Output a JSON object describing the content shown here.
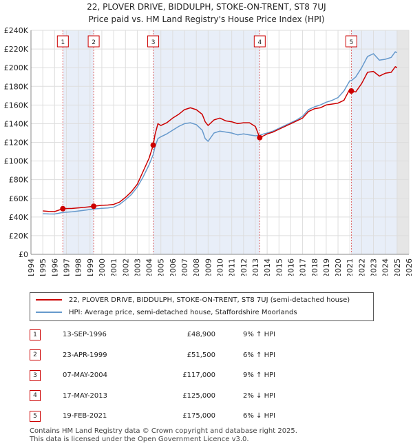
{
  "title_line1": "22, PLOVER DRIVE, BIDDULPH, STOKE-ON-TRENT, ST8 7UJ",
  "title_line2": "Price paid vs. HM Land Registry's House Price Index (HPI)",
  "colors": {
    "price_line": "#cc0000",
    "hpi_line": "#6699cc",
    "sale_band": "#e8eef8",
    "future_band": "#e6e6e6",
    "grid": "#dddddd"
  },
  "chart_data": {
    "type": "line",
    "xlim": [
      1994,
      2026
    ],
    "ylim": [
      0,
      240000
    ],
    "x_ticks": [
      "1994",
      "1995",
      "1996",
      "1997",
      "1998",
      "1999",
      "2000",
      "2001",
      "2002",
      "2003",
      "2004",
      "2005",
      "2006",
      "2007",
      "2008",
      "2009",
      "2010",
      "2011",
      "2012",
      "2013",
      "2014",
      "2015",
      "2016",
      "2017",
      "2018",
      "2019",
      "2020",
      "2021",
      "2022",
      "2023",
      "2024",
      "2025",
      "2026"
    ],
    "y_ticks": [
      {
        "value": 0,
        "label": "£0"
      },
      {
        "value": 20000,
        "label": "£20K"
      },
      {
        "value": 40000,
        "label": "£40K"
      },
      {
        "value": 60000,
        "label": "£60K"
      },
      {
        "value": 80000,
        "label": "£80K"
      },
      {
        "value": 100000,
        "label": "£100K"
      },
      {
        "value": 120000,
        "label": "£120K"
      },
      {
        "value": 140000,
        "label": "£140K"
      },
      {
        "value": 160000,
        "label": "£160K"
      },
      {
        "value": 180000,
        "label": "£180K"
      },
      {
        "value": 200000,
        "label": "£200K"
      },
      {
        "value": 220000,
        "label": "£220K"
      },
      {
        "value": 240000,
        "label": "£240K"
      }
    ],
    "grid": true,
    "future_from": 2025.0,
    "sale_bands": [
      [
        1996.7,
        1999.3
      ],
      [
        2004.35,
        2013.37
      ],
      [
        2021.13,
        2025.0
      ]
    ],
    "series": [
      {
        "name": "22, PLOVER DRIVE, BIDDULPH, STOKE-ON-TRENT, ST8 7UJ (semi-detached house)",
        "color": "#cc0000",
        "points": [
          [
            1995.0,
            46500
          ],
          [
            1995.5,
            46000
          ],
          [
            1996.0,
            45800
          ],
          [
            1996.7,
            48900
          ],
          [
            1997.5,
            49200
          ],
          [
            1998.5,
            50300
          ],
          [
            1999.3,
            51500
          ],
          [
            2000.0,
            52500
          ],
          [
            2000.5,
            52800
          ],
          [
            2001.0,
            53500
          ],
          [
            2001.5,
            56000
          ],
          [
            2002.0,
            61000
          ],
          [
            2002.5,
            67000
          ],
          [
            2003.0,
            75000
          ],
          [
            2003.5,
            89000
          ],
          [
            2004.0,
            103000
          ],
          [
            2004.35,
            117000
          ],
          [
            2004.5,
            128000
          ],
          [
            2004.75,
            140000
          ],
          [
            2005.0,
            138000
          ],
          [
            2005.5,
            141000
          ],
          [
            2006.0,
            146000
          ],
          [
            2006.5,
            150000
          ],
          [
            2007.0,
            155000
          ],
          [
            2007.5,
            157000
          ],
          [
            2008.0,
            155000
          ],
          [
            2008.5,
            150000
          ],
          [
            2008.75,
            142000
          ],
          [
            2009.0,
            138000
          ],
          [
            2009.5,
            144000
          ],
          [
            2010.0,
            146000
          ],
          [
            2010.5,
            143000
          ],
          [
            2011.0,
            142000
          ],
          [
            2011.5,
            140000
          ],
          [
            2012.0,
            141000
          ],
          [
            2012.5,
            141000
          ],
          [
            2013.0,
            137000
          ],
          [
            2013.37,
            125000
          ],
          [
            2013.7,
            127000
          ],
          [
            2014.0,
            129000
          ],
          [
            2014.5,
            131000
          ],
          [
            2015.0,
            134000
          ],
          [
            2015.5,
            137000
          ],
          [
            2016.0,
            140000
          ],
          [
            2016.5,
            143000
          ],
          [
            2017.0,
            146000
          ],
          [
            2017.5,
            153000
          ],
          [
            2018.0,
            156000
          ],
          [
            2018.5,
            157000
          ],
          [
            2019.0,
            160000
          ],
          [
            2019.5,
            161000
          ],
          [
            2020.0,
            162000
          ],
          [
            2020.5,
            165000
          ],
          [
            2021.0,
            177000
          ],
          [
            2021.13,
            175000
          ],
          [
            2021.5,
            174000
          ],
          [
            2022.0,
            183000
          ],
          [
            2022.5,
            195000
          ],
          [
            2023.0,
            196000
          ],
          [
            2023.5,
            191000
          ],
          [
            2024.0,
            194000
          ],
          [
            2024.5,
            195000
          ],
          [
            2024.85,
            201000
          ],
          [
            2025.0,
            200000
          ]
        ]
      },
      {
        "name": "HPI: Average price, semi-detached house, Staffordshire Moorlands",
        "color": "#6699cc",
        "points": [
          [
            1995.0,
            43500
          ],
          [
            1995.5,
            43300
          ],
          [
            1996.0,
            43200
          ],
          [
            1996.7,
            44800
          ],
          [
            1997.5,
            45600
          ],
          [
            1998.5,
            47200
          ],
          [
            1999.3,
            48500
          ],
          [
            2000.0,
            49300
          ],
          [
            2000.5,
            49600
          ],
          [
            2001.0,
            50500
          ],
          [
            2001.5,
            53500
          ],
          [
            2002.0,
            58500
          ],
          [
            2002.5,
            64000
          ],
          [
            2003.0,
            72000
          ],
          [
            2003.5,
            83000
          ],
          [
            2004.0,
            96000
          ],
          [
            2004.35,
            107000
          ],
          [
            2004.5,
            115000
          ],
          [
            2004.75,
            124000
          ],
          [
            2005.0,
            126000
          ],
          [
            2005.5,
            129000
          ],
          [
            2006.0,
            133000
          ],
          [
            2006.5,
            137000
          ],
          [
            2007.0,
            140000
          ],
          [
            2007.5,
            141000
          ],
          [
            2008.0,
            139000
          ],
          [
            2008.5,
            133000
          ],
          [
            2008.75,
            124000
          ],
          [
            2009.0,
            121000
          ],
          [
            2009.5,
            130000
          ],
          [
            2010.0,
            132000
          ],
          [
            2010.5,
            131000
          ],
          [
            2011.0,
            130000
          ],
          [
            2011.5,
            128000
          ],
          [
            2012.0,
            129000
          ],
          [
            2012.5,
            128000
          ],
          [
            2013.0,
            127000
          ],
          [
            2013.37,
            127500
          ],
          [
            2013.7,
            129000
          ],
          [
            2014.0,
            130000
          ],
          [
            2014.5,
            132000
          ],
          [
            2015.0,
            135000
          ],
          [
            2015.5,
            138000
          ],
          [
            2016.0,
            141000
          ],
          [
            2016.5,
            144000
          ],
          [
            2017.0,
            148000
          ],
          [
            2017.5,
            155000
          ],
          [
            2018.0,
            158000
          ],
          [
            2018.5,
            160000
          ],
          [
            2019.0,
            163000
          ],
          [
            2019.5,
            165000
          ],
          [
            2020.0,
            168000
          ],
          [
            2020.5,
            175000
          ],
          [
            2021.0,
            186000
          ],
          [
            2021.13,
            186000
          ],
          [
            2021.5,
            190000
          ],
          [
            2022.0,
            200000
          ],
          [
            2022.5,
            212000
          ],
          [
            2023.0,
            215000
          ],
          [
            2023.5,
            208000
          ],
          [
            2024.0,
            209000
          ],
          [
            2024.5,
            211000
          ],
          [
            2024.85,
            217000
          ],
          [
            2025.0,
            216000
          ]
        ]
      }
    ],
    "sales": [
      {
        "label": "1",
        "x": 1996.7,
        "y": 48900
      },
      {
        "label": "2",
        "x": 1999.31,
        "y": 51500
      },
      {
        "label": "3",
        "x": 2004.35,
        "y": 117000
      },
      {
        "label": "4",
        "x": 2013.37,
        "y": 125000
      },
      {
        "label": "5",
        "x": 2021.13,
        "y": 175000
      }
    ]
  },
  "legend": {
    "price_label": "22, PLOVER DRIVE, BIDDULPH, STOKE-ON-TRENT, ST8 7UJ (semi-detached house)",
    "hpi_label": "HPI: Average price, semi-detached house, Staffordshire Moorlands"
  },
  "sales_table": [
    {
      "num": "1",
      "date": "13-SEP-1996",
      "price": "£48,900",
      "hpi": "9% ↑ HPI"
    },
    {
      "num": "2",
      "date": "23-APR-1999",
      "price": "£51,500",
      "hpi": "6% ↑ HPI"
    },
    {
      "num": "3",
      "date": "07-MAY-2004",
      "price": "£117,000",
      "hpi": "9% ↑ HPI"
    },
    {
      "num": "4",
      "date": "17-MAY-2013",
      "price": "£125,000",
      "hpi": "2% ↓ HPI"
    },
    {
      "num": "5",
      "date": "19-FEB-2021",
      "price": "£175,000",
      "hpi": "6% ↓ HPI"
    }
  ],
  "footer": {
    "line1": "Contains HM Land Registry data © Crown copyright and database right 2025.",
    "line2": "This data is licensed under the Open Government Licence v3.0."
  }
}
